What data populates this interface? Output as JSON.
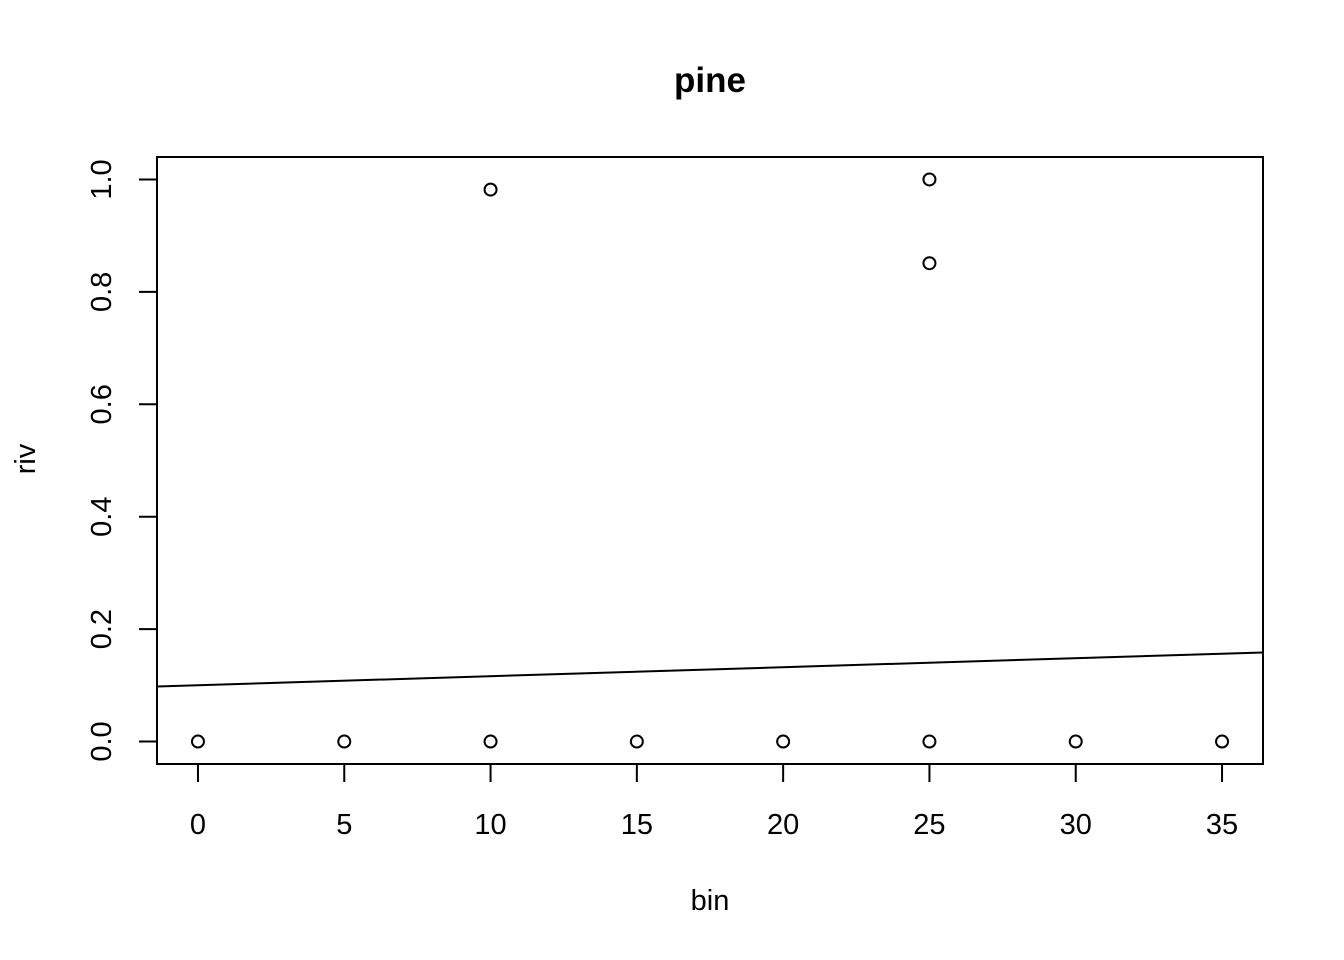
{
  "chart_data": {
    "type": "scatter",
    "title": "pine",
    "xlabel": "bin",
    "ylabel": "riv",
    "xlim": [
      -1.4,
      36.4
    ],
    "ylim": [
      -0.04,
      1.04
    ],
    "x_ticks": [
      0,
      5,
      10,
      15,
      20,
      25,
      30,
      35
    ],
    "y_ticks": [
      0.0,
      0.2,
      0.4,
      0.6,
      0.8,
      1.0
    ],
    "x_tick_labels": [
      "0",
      "5",
      "10",
      "15",
      "20",
      "25",
      "30",
      "35"
    ],
    "y_tick_labels": [
      "0.0",
      "0.2",
      "0.4",
      "0.6",
      "0.8",
      "1.0"
    ],
    "points": [
      {
        "x": 0,
        "y": 0.0
      },
      {
        "x": 5,
        "y": 0.0
      },
      {
        "x": 10,
        "y": 0.0
      },
      {
        "x": 10,
        "y": 0.982
      },
      {
        "x": 15,
        "y": 0.0
      },
      {
        "x": 20,
        "y": 0.0
      },
      {
        "x": 25,
        "y": 0.0
      },
      {
        "x": 25,
        "y": 0.851
      },
      {
        "x": 25,
        "y": 1.0
      },
      {
        "x": 30,
        "y": 0.0
      },
      {
        "x": 35,
        "y": 0.0
      }
    ],
    "fit_line": {
      "intercept": 0.1002,
      "slope": 0.0016
    },
    "marker": "open-circle",
    "grid": false,
    "legend": "none"
  }
}
